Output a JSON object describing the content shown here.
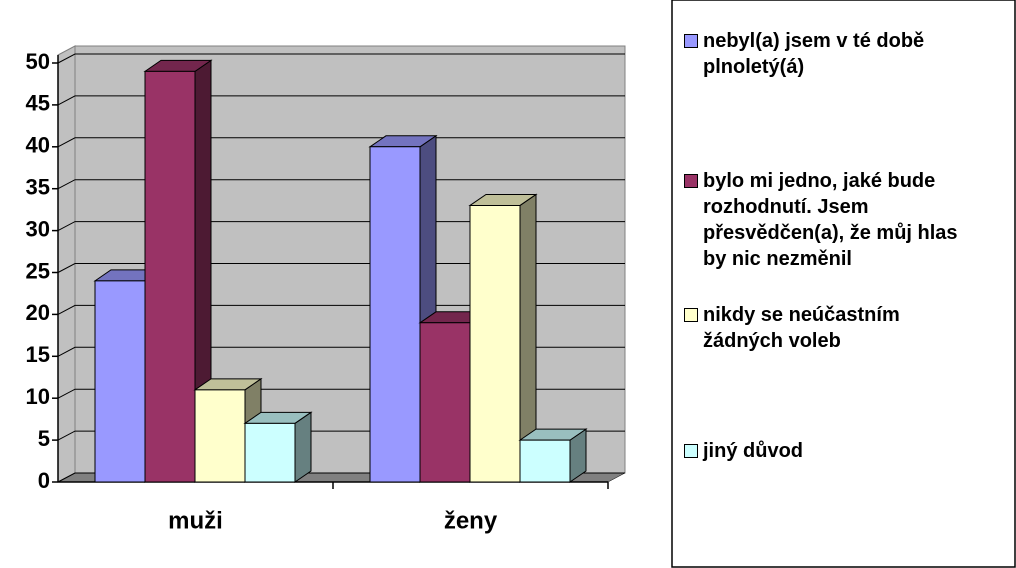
{
  "chart_data": {
    "type": "bar3d",
    "categories": [
      "muži",
      "ženy"
    ],
    "series": [
      {
        "name": "nebyl(a) jsem v té době plnoletý(á)",
        "color": "#9999ff",
        "values": [
          24,
          40
        ]
      },
      {
        "name": "bylo mi jedno, jaké bude rozhodnutí. Jsem přesvědčen(a), že můj hlas by nic nezměnil",
        "color": "#993366",
        "values": [
          49,
          19
        ]
      },
      {
        "name": "nikdy se neúčastním žádných voleb",
        "color": "#ffffcc",
        "values": [
          11,
          33
        ]
      },
      {
        "name": "jiný důvod",
        "color": "#ccffff",
        "values": [
          7,
          5
        ]
      }
    ],
    "ylim": [
      0,
      50
    ],
    "yticks": [
      0,
      5,
      10,
      15,
      20,
      25,
      30,
      35,
      40,
      45,
      50
    ],
    "grid": true,
    "legend": "right"
  }
}
